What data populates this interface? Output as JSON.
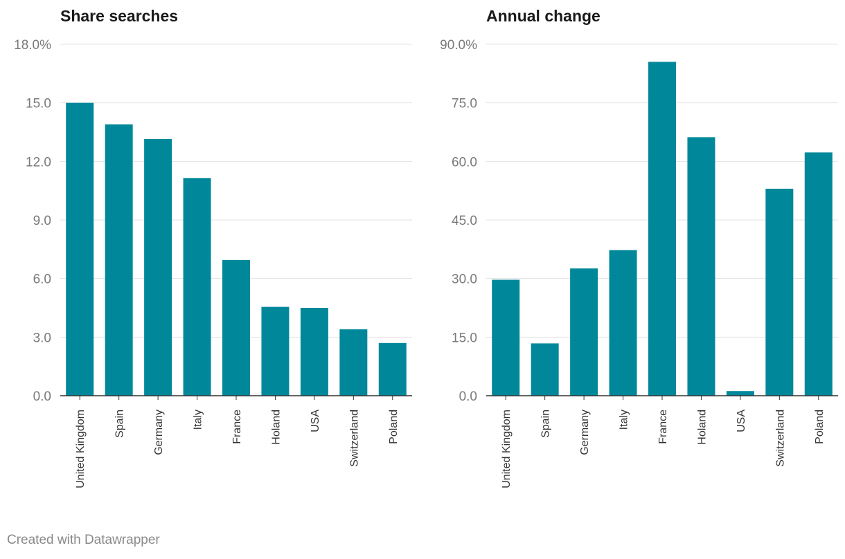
{
  "colors": {
    "bar": "#00889a",
    "grid": "#e3e3e3",
    "axis": "#333333",
    "tick": "#7a7a7a"
  },
  "chart_data": [
    {
      "type": "bar",
      "title": "Share searches",
      "categories": [
        "United Kingdom",
        "Spain",
        "Germany",
        "Italy",
        "France",
        "Holand",
        "USA",
        "Switzerland",
        "Poland"
      ],
      "values": [
        15.0,
        13.9,
        13.15,
        11.15,
        6.95,
        4.55,
        4.5,
        3.4,
        2.7
      ],
      "yticks": [
        "0.0",
        "3.0",
        "6.0",
        "9.0",
        "12.0",
        "15.0",
        "18.0%"
      ],
      "ylim": [
        0,
        18
      ],
      "xlabel": "",
      "ylabel": ""
    },
    {
      "type": "bar",
      "title": "Annual change",
      "categories": [
        "United Kingdom",
        "Spain",
        "Germany",
        "Italy",
        "France",
        "Holand",
        "USA",
        "Switzerland",
        "Poland"
      ],
      "values": [
        29.7,
        13.4,
        32.6,
        37.3,
        85.5,
        66.2,
        1.2,
        53.0,
        62.3
      ],
      "yticks": [
        "0.0",
        "15.0",
        "30.0",
        "45.0",
        "60.0",
        "75.0",
        "90.0%"
      ],
      "ylim": [
        0,
        90
      ],
      "xlabel": "",
      "ylabel": ""
    }
  ],
  "footer": "Created with Datawrapper"
}
